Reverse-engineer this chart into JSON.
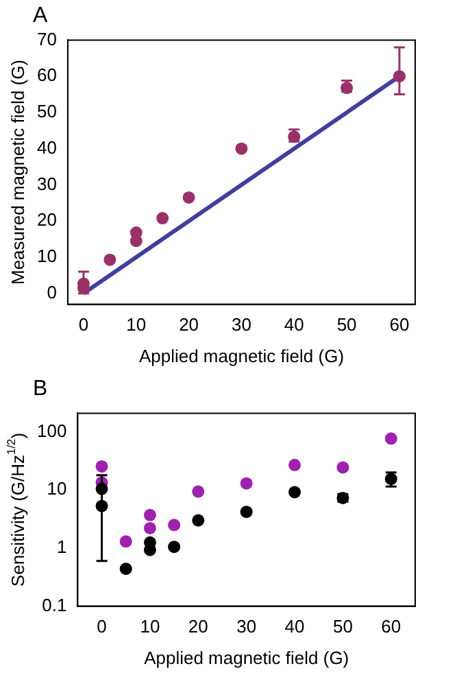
{
  "chart_data": [
    {
      "type": "scatter",
      "title": "A",
      "xlabel": "Applied magnetic field (G)",
      "ylabel": "Measured magnetic field (G)",
      "xlim": [
        -3,
        63
      ],
      "xticks": [
        0,
        10,
        20,
        30,
        40,
        50,
        60
      ],
      "ylim": [
        -3,
        70
      ],
      "yticks": [
        0,
        10,
        20,
        30,
        40,
        50,
        60,
        70
      ],
      "grid": false,
      "legend": false,
      "marker": "circle",
      "series": [
        {
          "type": "scatter",
          "color": "#9b3068",
          "x": [
            0,
            0,
            5,
            10,
            10,
            15,
            20,
            30,
            40,
            50,
            60
          ],
          "values": [
            2.7,
            1.5,
            9.3,
            16.8,
            14.5,
            20.8,
            26.5,
            40,
            43.3,
            56.8,
            60
          ],
          "errors": [
            [
              0,
              6
            ],
            null,
            null,
            null,
            null,
            null,
            null,
            null,
            [
              42,
              45.3
            ],
            [
              55.7,
              58.8
            ],
            [
              55,
              68
            ]
          ]
        },
        {
          "type": "line",
          "color": "#3f3fa0",
          "marker": "none",
          "x": [
            0,
            60
          ],
          "values": [
            0,
            60
          ]
        }
      ]
    },
    {
      "type": "scatter",
      "title": "B",
      "xlabel": "Applied magnetic field (G)",
      "ylabel": "Sensitivity (G/Hz$^{1/2}$)",
      "log": "y",
      "xlim": [
        -5,
        65
      ],
      "xticks": [
        0,
        10,
        20,
        30,
        40,
        50,
        60
      ],
      "ylim": [
        0.1,
        210
      ],
      "yticks": [
        0.1,
        1,
        10,
        100
      ],
      "grid": false,
      "legend": false,
      "marker": "circle",
      "series": [
        {
          "type": "scatter",
          "color": "#000000",
          "x": [
            0,
            0,
            5,
            10,
            10,
            15,
            20,
            30,
            40,
            50,
            60
          ],
          "values": [
            10.5,
            5.3,
            0.44,
            1.25,
            0.93,
            1.05,
            3.0,
            4.2,
            9.2,
            7.3,
            15.5
          ],
          "errors": [
            null,
            [
              0.6,
              18
            ],
            null,
            null,
            null,
            null,
            null,
            null,
            null,
            [
              6.3,
              8.5
            ],
            [
              11.5,
              20
            ]
          ]
        },
        {
          "type": "scatter",
          "color": "#a020b0",
          "x": [
            0,
            0,
            5,
            10,
            10,
            15,
            20,
            30,
            40,
            50,
            60
          ],
          "values": [
            25.5,
            13.5,
            1.3,
            3.7,
            2.2,
            2.5,
            9.4,
            13,
            27,
            24.5,
            77
          ]
        }
      ]
    }
  ]
}
